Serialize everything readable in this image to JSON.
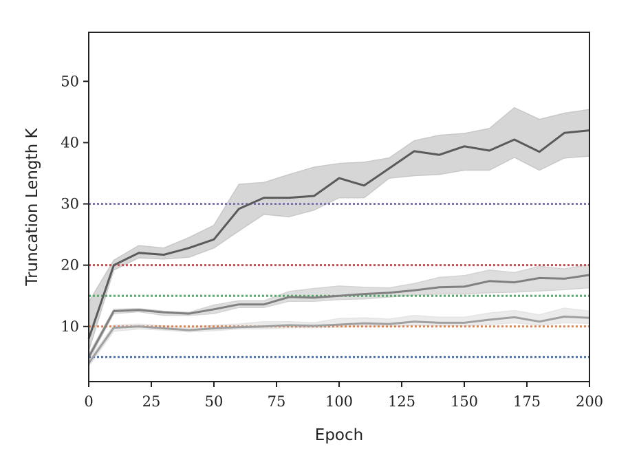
{
  "chart_data": {
    "type": "line",
    "xlabel": "Epoch",
    "ylabel": "Truncation Length K",
    "xlim": [
      0,
      200
    ],
    "ylim": [
      1,
      58
    ],
    "xticks": [
      0,
      25,
      50,
      75,
      100,
      125,
      150,
      175,
      200
    ],
    "yticks": [
      10,
      20,
      30,
      40,
      50
    ],
    "grid": false,
    "reference_lines": [
      {
        "y": 5,
        "color": "#4c72b0",
        "style": "dotted"
      },
      {
        "y": 10,
        "color": "#dd8452",
        "style": "dotted"
      },
      {
        "y": 15,
        "color": "#55a868",
        "style": "dotted"
      },
      {
        "y": 20,
        "color": "#c44e52",
        "style": "dotted"
      },
      {
        "y": 30,
        "color": "#8172b3",
        "style": "dotted"
      }
    ],
    "series": [
      {
        "color": "#5a5a5a",
        "band_color": "#c8c8c8",
        "x": [
          0,
          10,
          20,
          30,
          40,
          50,
          60,
          70,
          80,
          90,
          100,
          110,
          120,
          130,
          140,
          150,
          160,
          170,
          180,
          190,
          200
        ],
        "y": [
          8,
          20,
          22,
          21.7,
          22.8,
          24.2,
          29.2,
          31,
          31,
          31.3,
          34.2,
          33,
          35.8,
          38.6,
          38,
          39.4,
          38.7,
          40.5,
          38.5,
          41.6,
          42
        ],
        "lower": [
          6,
          19.2,
          21.2,
          21,
          21.3,
          22.8,
          25.6,
          28.3,
          27.9,
          29,
          31,
          31,
          34.2,
          34.6,
          34.8,
          35.5,
          35.5,
          37.6,
          35.5,
          37.5,
          37.8
        ],
        "upper": [
          14,
          20.8,
          23.2,
          22.8,
          24.5,
          26.5,
          33.2,
          33.5,
          34.8,
          36,
          36.6,
          36.8,
          37.5,
          40.3,
          41.2,
          41.5,
          42.3,
          45.7,
          43.8,
          44.8,
          45.4
        ]
      },
      {
        "color": "#808080",
        "band_color": "#d3d3d3",
        "x": [
          0,
          10,
          20,
          30,
          40,
          50,
          60,
          70,
          80,
          90,
          100,
          110,
          120,
          130,
          140,
          150,
          160,
          170,
          180,
          190,
          200
        ],
        "y": [
          5,
          12.5,
          12.7,
          12.3,
          12.1,
          12.8,
          13.6,
          13.6,
          14.8,
          14.7,
          15,
          15.3,
          15.5,
          15.9,
          16.4,
          16.5,
          17.4,
          17.2,
          17.9,
          17.8,
          18.4
        ],
        "lower": [
          4.5,
          12.1,
          12.4,
          11.8,
          11.8,
          12.1,
          13.1,
          13.1,
          14.1,
          14.1,
          14.4,
          14.5,
          14.8,
          15.1,
          15.3,
          15.3,
          15.5,
          15.6,
          15.8,
          16,
          16.3
        ],
        "upper": [
          5.5,
          12.8,
          12.9,
          12.5,
          12.3,
          13.5,
          14.2,
          14.2,
          15.7,
          16.2,
          16.6,
          16.4,
          16.3,
          17,
          18,
          18.3,
          19.2,
          18.8,
          19.8,
          19.4,
          20.1
        ]
      },
      {
        "color": "#a0a0a0",
        "band_color": "#e4e4e4",
        "x": [
          0,
          10,
          20,
          30,
          40,
          50,
          60,
          70,
          80,
          90,
          100,
          110,
          120,
          130,
          140,
          150,
          160,
          170,
          180,
          190,
          200
        ],
        "y": [
          4,
          9.8,
          10,
          9.7,
          9.4,
          9.7,
          9.9,
          10,
          10.2,
          10.1,
          10.3,
          10.5,
          10.4,
          10.8,
          10.6,
          10.6,
          11.1,
          11.5,
          10.8,
          11.6,
          11.4
        ],
        "lower": [
          3.5,
          9.2,
          9.6,
          9.4,
          9.1,
          9.3,
          9.6,
          9.6,
          9.8,
          9.8,
          9.9,
          10,
          10,
          10.2,
          10.1,
          10.1,
          10.3,
          10.6,
          10.2,
          10.6,
          10.5
        ],
        "upper": [
          4.5,
          10.2,
          10.4,
          10.1,
          9.8,
          10.2,
          10.4,
          10.8,
          10.8,
          10.6,
          11.3,
          11.4,
          11.2,
          11.8,
          11.5,
          11.5,
          12.2,
          12.6,
          11.9,
          13,
          12.5
        ]
      }
    ]
  }
}
